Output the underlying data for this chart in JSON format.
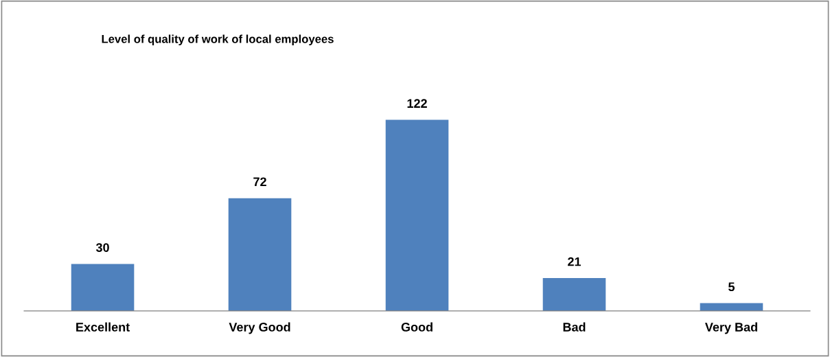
{
  "chart_data": {
    "type": "bar",
    "title": "Level of quality of work of local employees",
    "categories": [
      "Excellent",
      "Very Good",
      "Good",
      "Bad",
      "Very Bad"
    ],
    "values": [
      30,
      72,
      122,
      21,
      5
    ],
    "color": "#4f81bd",
    "data_labels": true,
    "grid": false,
    "legend": false
  }
}
